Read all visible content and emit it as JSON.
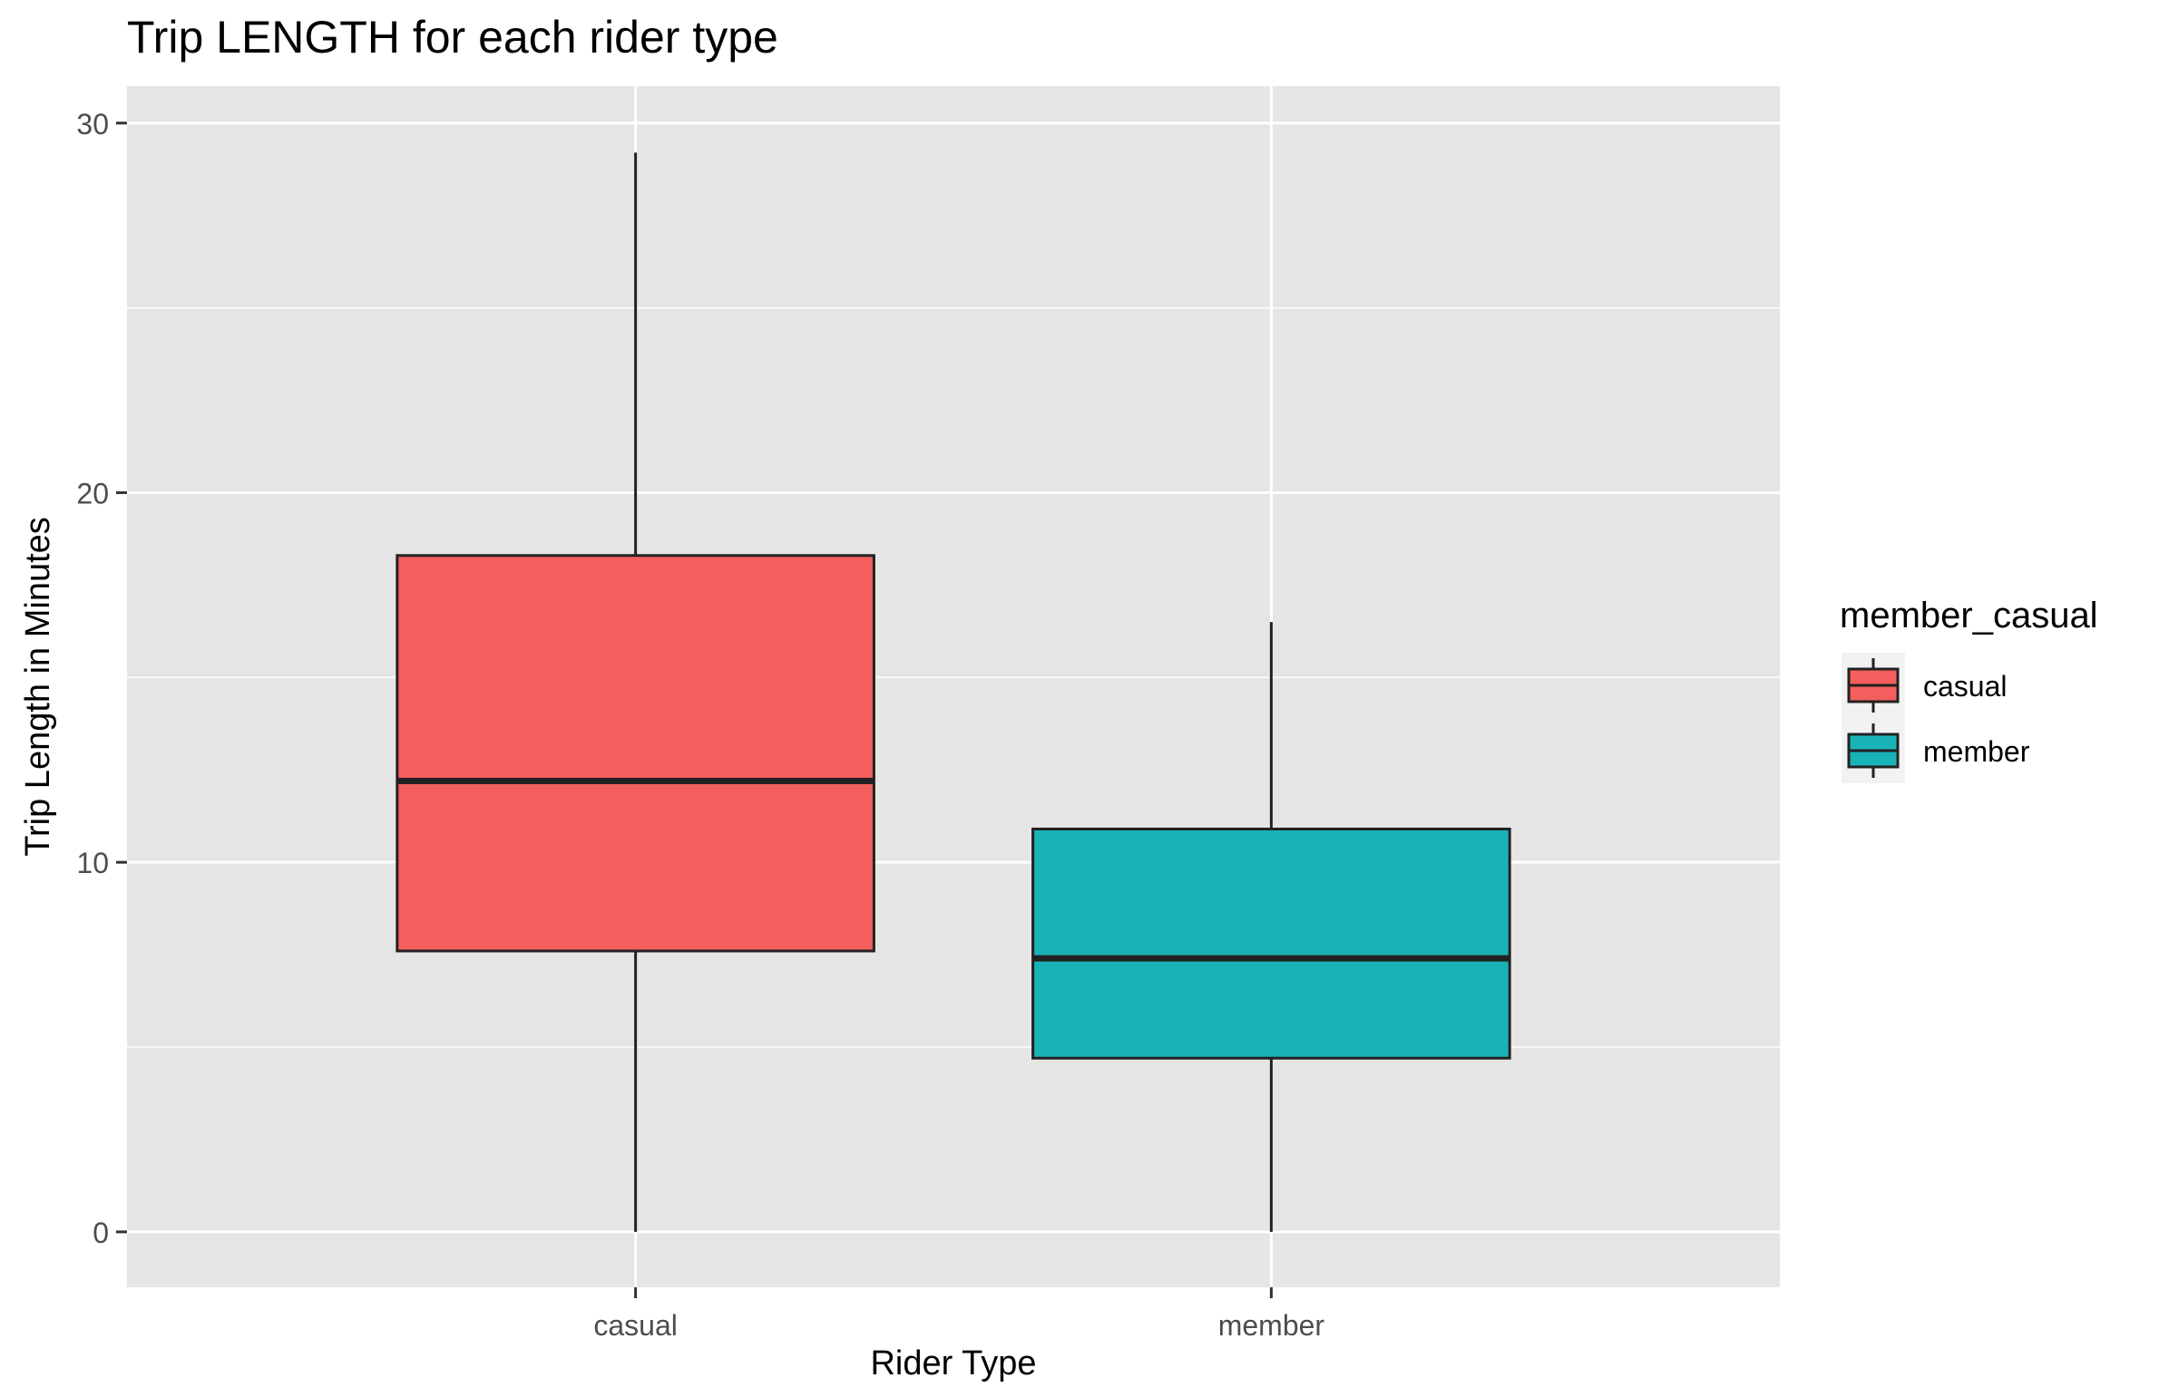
{
  "chart_data": {
    "type": "boxplot",
    "title": "Trip LENGTH for each rider type",
    "xlabel": "Rider Type",
    "ylabel": "Trip Length in Minutes",
    "ylim": [
      -1.5,
      31
    ],
    "yticks": [
      0,
      10,
      20,
      30
    ],
    "yticks_labels": [
      "0",
      "10",
      "20",
      "30"
    ],
    "categories": [
      "casual",
      "member"
    ],
    "grid": true,
    "legend": {
      "title": "member_casual",
      "position": "right",
      "entries": [
        "casual",
        "member"
      ]
    },
    "boxes": [
      {
        "category": "casual",
        "min": 0,
        "q1": 7.6,
        "median": 12.2,
        "q3": 18.3,
        "max": 29.2,
        "color": "#F25F5C"
      },
      {
        "category": "member",
        "min": 0,
        "q1": 4.7,
        "median": 7.4,
        "q3": 10.9,
        "max": 16.5,
        "color": "#19B3B7"
      }
    ],
    "colors": {
      "panel": "#E5E5E5",
      "grid": "#FFFFFF",
      "outline": "#222222"
    }
  }
}
